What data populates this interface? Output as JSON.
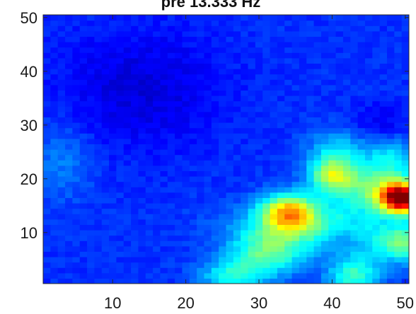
{
  "chart_data": {
    "type": "heatmap",
    "title": "pre 13.333 Hz",
    "xlabel": "",
    "ylabel": "",
    "xlim": [
      0.5,
      50.5
    ],
    "ylim": [
      0.5,
      50.5
    ],
    "x_ticks": [
      10,
      20,
      30,
      40,
      50
    ],
    "y_ticks": [
      10,
      20,
      30,
      40,
      50
    ],
    "x_tick_labels": [
      "10",
      "20",
      "30",
      "40",
      "50"
    ],
    "y_tick_labels": [
      "10",
      "20",
      "30",
      "40",
      "50"
    ],
    "grid": false,
    "colormap": "jet",
    "value_range": [
      0,
      1
    ],
    "grid_size": [
      50,
      50
    ],
    "baseline": 0.17,
    "peaks": [
      {
        "x": 49.5,
        "y": 16.5,
        "amplitude": 0.82,
        "sigma_x": 2.0,
        "sigma_y": 2.0
      },
      {
        "x": 34,
        "y": 14,
        "amplitude": 0.43,
        "sigma_x": 2.6,
        "sigma_y": 2.4
      },
      {
        "x": 40,
        "y": 21,
        "amplitude": 0.36,
        "sigma_x": 2.3,
        "sigma_y": 2.3
      },
      {
        "x": 37,
        "y": 11,
        "amplitude": 0.25,
        "sigma_x": 7.0,
        "sigma_y": 3.2
      },
      {
        "x": 31,
        "y": 6,
        "amplitude": 0.26,
        "sigma_x": 3.5,
        "sigma_y": 3.0
      },
      {
        "x": 26,
        "y": 2,
        "amplitude": 0.2,
        "sigma_x": 3.0,
        "sigma_y": 2.0
      },
      {
        "x": 43,
        "y": 2,
        "amplitude": 0.26,
        "sigma_x": 2.5,
        "sigma_y": 2.5
      },
      {
        "x": 45,
        "y": 18,
        "amplitude": 0.25,
        "sigma_x": 3.5,
        "sigma_y": 3.0
      },
      {
        "x": 41,
        "y": 26,
        "amplitude": 0.15,
        "sigma_x": 3.0,
        "sigma_y": 2.5
      },
      {
        "x": 48,
        "y": 24,
        "amplitude": 0.2,
        "sigma_x": 2.5,
        "sigma_y": 3.5
      },
      {
        "x": 46,
        "y": 8,
        "amplitude": 0.12,
        "sigma_x": 3.0,
        "sigma_y": 2.5
      },
      {
        "x": 3,
        "y": 23,
        "amplitude": 0.08,
        "sigma_x": 3.0,
        "sigma_y": 5.0
      },
      {
        "x": 50,
        "y": 8,
        "amplitude": 0.25,
        "sigma_x": 2.0,
        "sigma_y": 2.5
      }
    ],
    "troughs": [
      {
        "x": 47,
        "y": 29,
        "depth": 0.1,
        "sigma_x": 3.0,
        "sigma_y": 3.0
      },
      {
        "x": 14,
        "y": 37,
        "depth": 0.08,
        "sigma_x": 8.0,
        "sigma_y": 8.0
      },
      {
        "x": 42,
        "y": 9,
        "depth": 0.08,
        "sigma_x": 2.5,
        "sigma_y": 2.0
      }
    ]
  }
}
